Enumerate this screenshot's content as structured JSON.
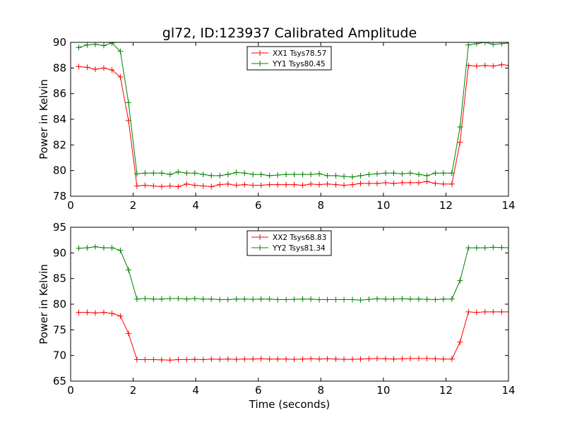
{
  "title": "gl72, ID:123937 Calibrated Amplitude",
  "colors": {
    "xx": "#ff0000",
    "yy": "#008000"
  },
  "chart_data": [
    {
      "type": "line",
      "title": "gl72, ID:123937 Calibrated Amplitude",
      "xlabel": "",
      "ylabel": "Power in Kelvin",
      "xlim": [
        0,
        14
      ],
      "ylim": [
        78,
        90
      ],
      "xticks": [
        0,
        2,
        4,
        6,
        8,
        10,
        12,
        14
      ],
      "yticks": [
        78,
        80,
        82,
        84,
        86,
        88,
        90
      ],
      "grid": false,
      "legend_position": "top-center",
      "x": [
        0.26,
        0.53,
        0.79,
        1.06,
        1.32,
        1.59,
        1.85,
        2.12,
        2.38,
        2.65,
        2.91,
        3.18,
        3.44,
        3.71,
        3.97,
        4.24,
        4.5,
        4.77,
        5.03,
        5.3,
        5.56,
        5.83,
        6.09,
        6.36,
        6.62,
        6.89,
        7.15,
        7.42,
        7.68,
        7.95,
        8.21,
        8.48,
        8.74,
        9.01,
        9.27,
        9.54,
        9.8,
        10.07,
        10.33,
        10.6,
        10.86,
        11.13,
        11.39,
        11.66,
        11.92,
        12.19,
        12.45,
        12.72,
        12.98,
        13.25,
        13.51,
        13.78,
        14.04
      ],
      "series": [
        {
          "name": "XX1 Tsys78.57",
          "color": "#ff0000",
          "values": [
            88.1,
            88.05,
            87.9,
            88.0,
            87.85,
            87.3,
            83.9,
            78.8,
            78.85,
            78.8,
            78.75,
            78.8,
            78.75,
            78.95,
            78.85,
            78.8,
            78.75,
            78.9,
            78.95,
            78.85,
            78.9,
            78.85,
            78.85,
            78.9,
            78.9,
            78.9,
            78.9,
            78.85,
            78.95,
            78.9,
            78.95,
            78.9,
            78.85,
            78.9,
            79.0,
            79.0,
            79.0,
            79.05,
            79.0,
            79.05,
            79.05,
            79.05,
            79.15,
            79.0,
            78.95,
            78.95,
            82.2,
            88.2,
            88.15,
            88.2,
            88.15,
            88.25,
            88.2
          ]
        },
        {
          "name": "YY1 Tsys80.45",
          "color": "#008000",
          "values": [
            89.6,
            89.8,
            89.85,
            89.75,
            89.95,
            89.3,
            85.3,
            79.75,
            79.8,
            79.8,
            79.8,
            79.7,
            79.9,
            79.8,
            79.8,
            79.7,
            79.6,
            79.6,
            79.7,
            79.85,
            79.8,
            79.7,
            79.7,
            79.6,
            79.65,
            79.7,
            79.7,
            79.7,
            79.7,
            79.75,
            79.6,
            79.6,
            79.55,
            79.5,
            79.6,
            79.7,
            79.75,
            79.8,
            79.8,
            79.75,
            79.8,
            79.7,
            79.6,
            79.8,
            79.8,
            79.8,
            83.4,
            89.8,
            89.9,
            90.0,
            89.85,
            89.9,
            89.95
          ]
        }
      ]
    },
    {
      "type": "line",
      "title": "",
      "xlabel": "Time (seconds)",
      "ylabel": "Power in Kelvin",
      "xlim": [
        0,
        14
      ],
      "ylim": [
        65,
        95
      ],
      "xticks": [
        0,
        2,
        4,
        6,
        8,
        10,
        12,
        14
      ],
      "yticks": [
        65,
        70,
        75,
        80,
        85,
        90,
        95
      ],
      "grid": false,
      "legend_position": "top-center",
      "x": [
        0.26,
        0.53,
        0.79,
        1.06,
        1.32,
        1.59,
        1.85,
        2.12,
        2.38,
        2.65,
        2.91,
        3.18,
        3.44,
        3.71,
        3.97,
        4.24,
        4.5,
        4.77,
        5.03,
        5.3,
        5.56,
        5.83,
        6.09,
        6.36,
        6.62,
        6.89,
        7.15,
        7.42,
        7.68,
        7.95,
        8.21,
        8.48,
        8.74,
        9.01,
        9.27,
        9.54,
        9.8,
        10.07,
        10.33,
        10.6,
        10.86,
        11.13,
        11.39,
        11.66,
        11.92,
        12.19,
        12.45,
        12.72,
        12.98,
        13.25,
        13.51,
        13.78,
        14.04
      ],
      "series": [
        {
          "name": "XX2 Tsys68.83",
          "color": "#ff0000",
          "values": [
            78.4,
            78.4,
            78.3,
            78.4,
            78.2,
            77.7,
            74.3,
            69.2,
            69.2,
            69.2,
            69.15,
            69.1,
            69.2,
            69.2,
            69.25,
            69.2,
            69.3,
            69.25,
            69.3,
            69.25,
            69.3,
            69.3,
            69.35,
            69.3,
            69.3,
            69.3,
            69.25,
            69.3,
            69.35,
            69.3,
            69.35,
            69.3,
            69.25,
            69.25,
            69.3,
            69.35,
            69.4,
            69.35,
            69.3,
            69.35,
            69.4,
            69.4,
            69.4,
            69.35,
            69.3,
            69.3,
            72.6,
            78.5,
            78.4,
            78.5,
            78.5,
            78.5,
            78.5
          ]
        },
        {
          "name": "YY2 Tsys81.34",
          "color": "#008000",
          "values": [
            90.9,
            91.0,
            91.2,
            91.0,
            91.0,
            90.5,
            86.7,
            81.0,
            81.1,
            81.0,
            81.0,
            81.1,
            81.1,
            81.0,
            81.1,
            81.0,
            81.0,
            80.9,
            80.9,
            81.0,
            81.0,
            80.95,
            81.0,
            81.0,
            80.9,
            80.9,
            80.95,
            81.0,
            81.0,
            80.9,
            80.9,
            80.9,
            80.9,
            80.9,
            80.8,
            80.95,
            81.05,
            81.0,
            81.0,
            81.05,
            81.0,
            81.0,
            80.95,
            80.9,
            81.0,
            81.0,
            84.6,
            91.0,
            91.0,
            91.0,
            91.1,
            91.05,
            91.0
          ]
        }
      ]
    }
  ]
}
